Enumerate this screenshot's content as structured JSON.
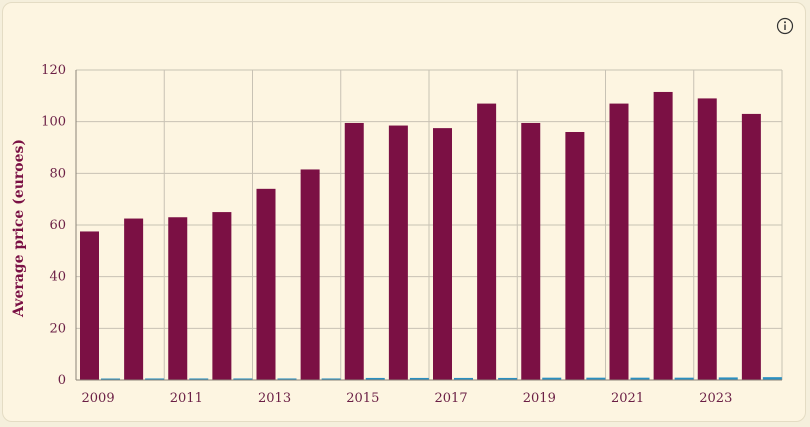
{
  "info_icon": "info-circle-icon",
  "chart_data": {
    "type": "bar",
    "categories": [
      "2009",
      "2010",
      "2011",
      "2012",
      "2013",
      "2014",
      "2015",
      "2016",
      "2017",
      "2018",
      "2019",
      "2020",
      "2021",
      "2022",
      "2023",
      "2024"
    ],
    "x_tick_labels": [
      "2009",
      "2011",
      "2013",
      "2015",
      "2017",
      "2019",
      "2021",
      "2023"
    ],
    "series": [
      {
        "color": "#7b1044",
        "values": [
          57.5,
          62.5,
          63,
          65,
          74,
          81.5,
          99.5,
          98.5,
          97.5,
          107,
          99.5,
          96,
          107,
          111.5,
          109,
          103
        ]
      },
      {
        "color": "#2a8fc0",
        "values": [
          0.5,
          0.6,
          0.6,
          0.6,
          0.6,
          0.6,
          0.8,
          0.8,
          0.8,
          0.8,
          0.9,
          0.9,
          0.9,
          0.9,
          1.0,
          1.1
        ]
      }
    ],
    "ylabel": "Average price (euroes)",
    "xlabel": "",
    "ylim": [
      0,
      120
    ],
    "yticks": [
      0,
      20,
      40,
      60,
      80,
      100,
      120
    ],
    "grid": true
  }
}
